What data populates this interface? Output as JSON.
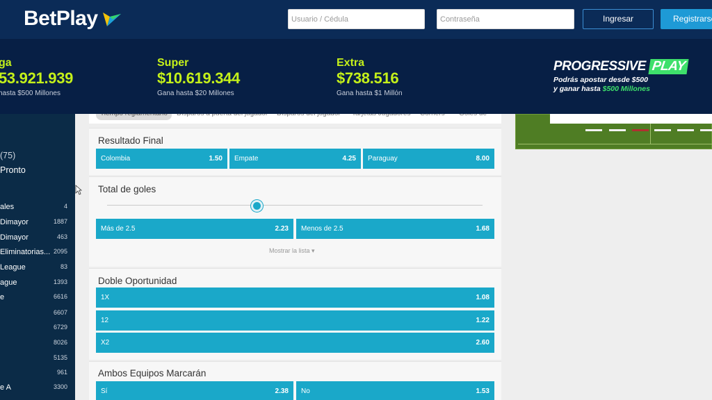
{
  "header": {
    "brand": "BetPlay",
    "user_placeholder": "Usuario / Cédula",
    "password_placeholder": "Contraseña",
    "login_label": "Ingresar",
    "register_label": "Registrarse"
  },
  "jackpots": [
    {
      "name": "ga",
      "amount": "53.921.939",
      "sub": "hasta $500 Millones"
    },
    {
      "name": "Super",
      "amount": "$10.619.344",
      "sub": "Gana hasta $20 Millones"
    },
    {
      "name": "Extra",
      "amount": "$738.516",
      "sub": "Gana hasta $1 Millón"
    }
  ],
  "promo": {
    "title_a": "PROGRESSIVE",
    "title_b": "PLAY",
    "line1": "Podrás apostar desde $500",
    "line2_a": "y ganar hasta ",
    "line2_b": "$500 Millones"
  },
  "sidebar": {
    "items": [
      {
        "label": "(75)",
        "count": ""
      },
      {
        "label": "Pronto",
        "count": ""
      },
      {
        "label": "ales",
        "count": "4"
      },
      {
        "label": "Dimayor",
        "count": "1887"
      },
      {
        "label": "Dimayor",
        "count": "463"
      },
      {
        "label": "Eliminatorias...",
        "count": "2095"
      },
      {
        "label": "League",
        "count": "83"
      },
      {
        "label": "ague",
        "count": "1393"
      },
      {
        "label": "e",
        "count": "6616"
      },
      {
        "label": "",
        "count": "6607"
      },
      {
        "label": "",
        "count": "6729"
      },
      {
        "label": "",
        "count": "8026"
      },
      {
        "label": "",
        "count": "5135"
      },
      {
        "label": "",
        "count": "961"
      },
      {
        "label": "e A",
        "count": "3300"
      }
    ]
  },
  "tabs": [
    "Tiempo reglamentario",
    "Disparos a puerta del jugador",
    "Disparos del jugador",
    "Tarjetas Jugadores",
    "Córners",
    "Goles de"
  ],
  "markets": {
    "resultado": {
      "title": "Resultado Final",
      "options": [
        {
          "label": "Colombia",
          "odd": "1.50"
        },
        {
          "label": "Empate",
          "odd": "4.25"
        },
        {
          "label": "Paraguay",
          "odd": "8.00"
        }
      ]
    },
    "goles": {
      "title": "Total de goles",
      "options": [
        {
          "label": "Más de  2.5",
          "odd": "2.23"
        },
        {
          "label": "Menos de  2.5",
          "odd": "1.68"
        }
      ],
      "show_list": "Mostrar la lista",
      "slider_position": 0.4
    },
    "doble": {
      "title": "Doble Oportunidad",
      "options": [
        {
          "label": "1X",
          "odd": "1.08"
        },
        {
          "label": "12",
          "odd": "1.22"
        },
        {
          "label": "X2",
          "odd": "2.60"
        }
      ]
    },
    "ambos": {
      "title": "Ambos Equipos Marcarán",
      "options": [
        {
          "label": "Sí",
          "odd": "2.38"
        },
        {
          "label": "No",
          "odd": "1.53"
        }
      ]
    }
  },
  "colors": {
    "header_bg": "#0b2b57",
    "accent_green": "#c4f01a",
    "odd_button": "#1aa8c9",
    "register_button": "#1e9ad6"
  }
}
